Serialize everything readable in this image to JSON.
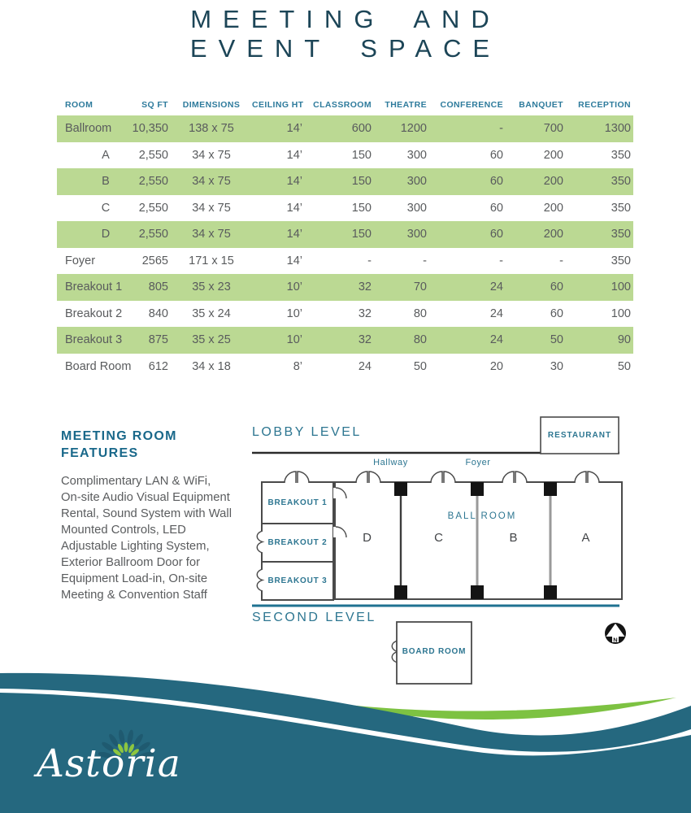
{
  "title": {
    "line1": "MEETING AND",
    "line2": "EVENT SPACE"
  },
  "table": {
    "headers": [
      "ROOM",
      "SQ FT",
      "DIMENSIONS",
      "CEILING HT",
      "CLASSROOM",
      "THEATRE",
      "CONFERENCE",
      "BANQUET",
      "RECEPTION"
    ],
    "rows": [
      {
        "room": "Ballroom",
        "indent": false,
        "values": [
          "10,350",
          "138 x 75",
          "14’",
          "600",
          "1200",
          "-",
          "700",
          "1300"
        ]
      },
      {
        "room": "A",
        "indent": true,
        "values": [
          "2,550",
          "34 x 75",
          "14’",
          "150",
          "300",
          "60",
          "200",
          "350"
        ]
      },
      {
        "room": "B",
        "indent": true,
        "values": [
          "2,550",
          "34 x 75",
          "14’",
          "150",
          "300",
          "60",
          "200",
          "350"
        ]
      },
      {
        "room": "C",
        "indent": true,
        "values": [
          "2,550",
          "34 x 75",
          "14’",
          "150",
          "300",
          "60",
          "200",
          "350"
        ]
      },
      {
        "room": "D",
        "indent": true,
        "values": [
          "2,550",
          "34 x 75",
          "14’",
          "150",
          "300",
          "60",
          "200",
          "350"
        ]
      },
      {
        "room": "Foyer",
        "indent": false,
        "values": [
          "2565",
          "171 x 15",
          "14’",
          "-",
          "-",
          "-",
          "-",
          "350"
        ]
      },
      {
        "room": "Breakout 1",
        "indent": false,
        "values": [
          "805",
          "35 x 23",
          "10’",
          "32",
          "70",
          "24",
          "60",
          "100"
        ]
      },
      {
        "room": "Breakout 2",
        "indent": false,
        "values": [
          "840",
          "35 x 24",
          "10’",
          "32",
          "80",
          "24",
          "60",
          "100"
        ]
      },
      {
        "room": "Breakout 3",
        "indent": false,
        "values": [
          "875",
          "35 x 25",
          "10’",
          "32",
          "80",
          "24",
          "50",
          "90"
        ]
      },
      {
        "room": "Board Room",
        "indent": false,
        "values": [
          "612",
          "34 x 18",
          "8’",
          "24",
          "50",
          "20",
          "30",
          "50"
        ]
      }
    ]
  },
  "features": {
    "heading": "MEETING ROOM FEATURES",
    "body": "Complimentary LAN & WiFi, On-site Audio Visual Equipment Rental, Sound System with Wall Mounted Controls, LED Adjustable Lighting System, Exterior Ballroom Door for Equipment Load-in, On-site Meeting & Convention Staff"
  },
  "floorplan": {
    "lobby_label": "LOBBY LEVEL",
    "restaurant_label": "RESTAURANT",
    "hallway_label": "Hallway",
    "foyer_label": "Foyer",
    "breakout1_label": "BREAKOUT 1",
    "breakout2_label": "BREAKOUT 2",
    "breakout3_label": "BREAKOUT 3",
    "ballroom_label": "BALL ROOM",
    "sections": [
      "D",
      "C",
      "B",
      "A"
    ],
    "second_label": "SECOND LEVEL",
    "boardroom_label": "BOARD ROOM",
    "north_label": "N"
  },
  "footer": {
    "logo_text": "Astoria"
  },
  "colors": {
    "dark_teal": "#1c4557",
    "accent_teal": "#2d7691",
    "header_teal": "#2e7b9c",
    "row_green": "#bbd993",
    "footer_teal": "#25687f",
    "swoosh_green": "#7dc242",
    "wall_dark": "#4a4a4a"
  }
}
